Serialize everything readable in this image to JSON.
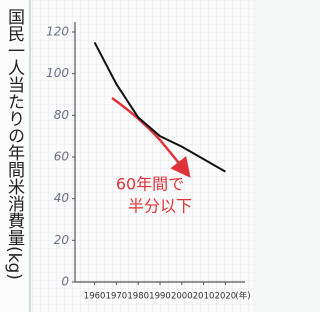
{
  "chart_data": {
    "type": "line",
    "ylabel": "国民一人当たりの年間米消費量(kg)",
    "xlabel": "(年)",
    "x": [
      1960,
      1970,
      1980,
      1990,
      2000,
      2010,
      2020
    ],
    "series": [
      {
        "color": "#111111",
        "values": [
          115,
          95,
          79,
          70,
          65,
          59,
          53
        ]
      }
    ],
    "xlim": [
      1951,
      2029
    ],
    "xticks": [
      1960,
      1970,
      1980,
      1990,
      2000,
      2010,
      2020
    ],
    "ylim": [
      0,
      120
    ],
    "yticks": [
      0,
      20,
      40,
      60,
      80,
      100,
      120
    ],
    "annotation": [
      "60年間で",
      "半分以下"
    ],
    "annotation_color": "#e0333a"
  }
}
